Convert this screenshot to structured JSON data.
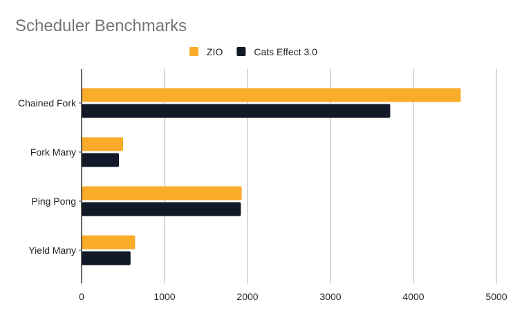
{
  "chart_data": {
    "type": "bar",
    "orientation": "horizontal",
    "title": "Scheduler Benchmarks",
    "categories": [
      "Chained Fork",
      "Fork Many",
      "Ping Pong",
      "Yield Many"
    ],
    "series": [
      {
        "name": "ZIO",
        "color": "#f9ab2a",
        "values": [
          4570,
          500,
          1930,
          645
        ]
      },
      {
        "name": "Cats Effect 3.0",
        "color": "#111827",
        "values": [
          3720,
          450,
          1920,
          590
        ]
      }
    ],
    "xlim": [
      0,
      5000
    ],
    "xticks": [
      "0",
      "1000",
      "2000",
      "3000",
      "4000",
      "5000"
    ],
    "grid": true,
    "legend": "top"
  }
}
